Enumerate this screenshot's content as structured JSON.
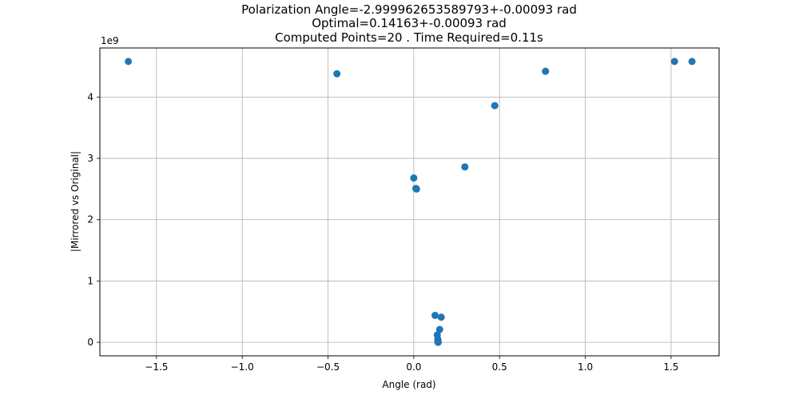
{
  "chart_data": {
    "type": "scatter",
    "title_lines": [
      "Polarization Angle=-2.999962653589793+-0.00093 rad",
      "Optimal=0.14163+-0.00093 rad",
      "Computed Points=20 . Time Required=0.11s"
    ],
    "xlabel": "Angle (rad)",
    "ylabel": "|Mirrored vs Original|",
    "y_offset_label": "1e9",
    "xlim": [
      -1.83,
      1.78
    ],
    "ylim": [
      -0.22,
      4.8
    ],
    "y_scale_factor": 1000000000,
    "xticks": [
      -1.5,
      -1.0,
      -0.5,
      0.0,
      0.5,
      1.0,
      1.5
    ],
    "xtick_labels": [
      "−1.5",
      "−1.0",
      "−0.5",
      "0.0",
      "0.5",
      "1.0",
      "1.5"
    ],
    "yticks": [
      0,
      1,
      2,
      3,
      4
    ],
    "ytick_labels": [
      "0",
      "1",
      "2",
      "3",
      "4"
    ],
    "grid": true,
    "marker_color": "#1f77b4",
    "points": [
      {
        "x": -1.664,
        "y": 4.58
      },
      {
        "x": -0.448,
        "y": 4.38
      },
      {
        "x": 0.0,
        "y": 2.68
      },
      {
        "x": 0.012,
        "y": 2.51
      },
      {
        "x": 0.016,
        "y": 2.5
      },
      {
        "x": 0.298,
        "y": 2.86
      },
      {
        "x": 0.472,
        "y": 3.86
      },
      {
        "x": 0.768,
        "y": 4.42
      },
      {
        "x": 1.52,
        "y": 4.58
      },
      {
        "x": 1.622,
        "y": 4.58
      },
      {
        "x": 0.124,
        "y": 0.44
      },
      {
        "x": 0.16,
        "y": 0.41
      },
      {
        "x": 0.151,
        "y": 0.21
      },
      {
        "x": 0.137,
        "y": 0.12
      },
      {
        "x": 0.14,
        "y": 0.05
      },
      {
        "x": 0.141,
        "y": 0.02
      },
      {
        "x": 0.142,
        "y": 0.01
      },
      {
        "x": 0.1415,
        "y": 0.003
      },
      {
        "x": 0.1416,
        "y": 0.001
      },
      {
        "x": 0.14163,
        "y": 0.0005
      }
    ]
  }
}
